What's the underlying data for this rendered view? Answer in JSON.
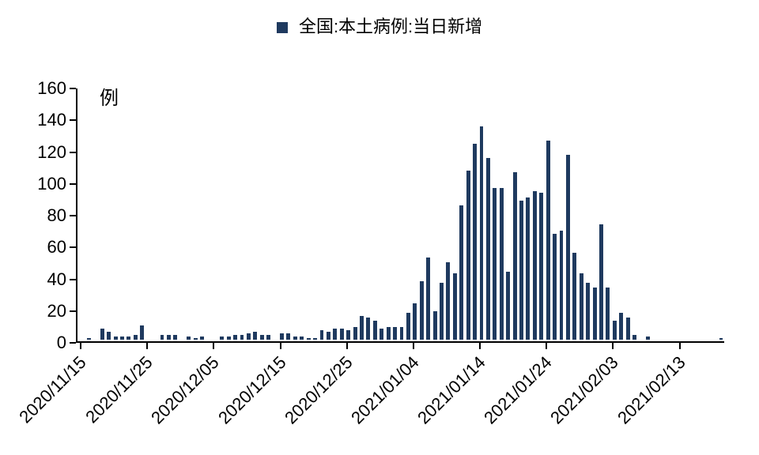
{
  "chart": {
    "type": "bar",
    "legend_text": "全国:本土病例:当日新增",
    "legend_marker_color": "#1f3a5f",
    "y_unit_label": "例",
    "y_axis": {
      "min": 0,
      "max": 160,
      "ticks": [
        0,
        20,
        40,
        60,
        80,
        100,
        120,
        140,
        160
      ]
    },
    "x_axis": {
      "labels": [
        "2020/11/15",
        "2020/11/25",
        "2020/12/05",
        "2020/12/15",
        "2020/12/25",
        "2021/01/04",
        "2021/01/14",
        "2021/01/24",
        "2021/02/03",
        "2021/02/13"
      ],
      "label_every": 10,
      "total_points": 97
    },
    "bar_color": "#1f3a5f",
    "bar_width_ratio": 0.58,
    "background_color": "#ffffff",
    "values": [
      0,
      1,
      0,
      7,
      5,
      2,
      2,
      2,
      3,
      9,
      0,
      0,
      3,
      3,
      3,
      0,
      2,
      1,
      2,
      0,
      0,
      2,
      2,
      3,
      3,
      4,
      5,
      3,
      3,
      0,
      4,
      4,
      2,
      2,
      1,
      1,
      6,
      5,
      7,
      7,
      6,
      8,
      15,
      14,
      12,
      7,
      8,
      8,
      8,
      17,
      23,
      37,
      52,
      18,
      36,
      49,
      42,
      85,
      107,
      124,
      135,
      115,
      96,
      96,
      43,
      106,
      88,
      90,
      94,
      93,
      126,
      67,
      69,
      117,
      55,
      42,
      36,
      33,
      73,
      33,
      12,
      17,
      14,
      3,
      0,
      2,
      0,
      0,
      0,
      0,
      0,
      0,
      0,
      0,
      0,
      0,
      1
    ],
    "title_fontsize": 22,
    "label_fontsize": 22,
    "axis_color": "#000000",
    "text_color": "#000000"
  }
}
